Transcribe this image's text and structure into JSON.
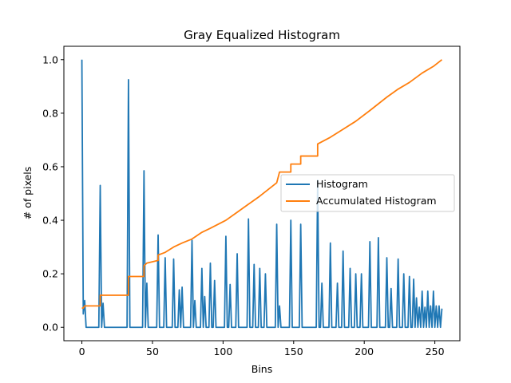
{
  "chart_data": {
    "type": "line",
    "title": "Gray Equalized Histogram",
    "xlabel": "Bins",
    "ylabel": "# of pixels",
    "xlim": [
      -12.75,
      267.75
    ],
    "ylim": [
      -0.05,
      1.05
    ],
    "x_ticks": [
      0,
      50,
      100,
      150,
      200,
      250
    ],
    "x_tick_labels": [
      "0",
      "50",
      "100",
      "150",
      "200",
      "250"
    ],
    "y_ticks": [
      0.0,
      0.2,
      0.4,
      0.6,
      0.8,
      1.0
    ],
    "y_tick_labels": [
      "0.0",
      "0.2",
      "0.4",
      "0.6",
      "0.8",
      "1.0"
    ],
    "grid": false,
    "legend_position": "center-right",
    "series": [
      {
        "name": "Histogram",
        "color": "#1f77b4",
        "peaks": [
          [
            0,
            1.0
          ],
          [
            1,
            0.05
          ],
          [
            2,
            0.1
          ],
          [
            3,
            0.0
          ],
          [
            13,
            0.53
          ],
          [
            15,
            0.09
          ],
          [
            33,
            0.925
          ],
          [
            44,
            0.585
          ],
          [
            46,
            0.165
          ],
          [
            54,
            0.345
          ],
          [
            59,
            0.26
          ],
          [
            65,
            0.255
          ],
          [
            69,
            0.14
          ],
          [
            71,
            0.15
          ],
          [
            78,
            0.325
          ],
          [
            80,
            0.1
          ],
          [
            85,
            0.22
          ],
          [
            87,
            0.115
          ],
          [
            91,
            0.24
          ],
          [
            94,
            0.175
          ],
          [
            102,
            0.34
          ],
          [
            105,
            0.16
          ],
          [
            110,
            0.275
          ],
          [
            118,
            0.405
          ],
          [
            122,
            0.235
          ],
          [
            126,
            0.22
          ],
          [
            130,
            0.2
          ],
          [
            138,
            0.385
          ],
          [
            140,
            0.08
          ],
          [
            148,
            0.4
          ],
          [
            155,
            0.385
          ],
          [
            167,
            0.55
          ],
          [
            170,
            0.165
          ],
          [
            176,
            0.315
          ],
          [
            181,
            0.165
          ],
          [
            185,
            0.285
          ],
          [
            190,
            0.22
          ],
          [
            194,
            0.2
          ],
          [
            198,
            0.2
          ],
          [
            204,
            0.32
          ],
          [
            210,
            0.335
          ],
          [
            216,
            0.26
          ],
          [
            219,
            0.145
          ],
          [
            224,
            0.255
          ],
          [
            228,
            0.2
          ],
          [
            232,
            0.19
          ],
          [
            235,
            0.18
          ],
          [
            237,
            0.11
          ],
          [
            239,
            0.075
          ],
          [
            241,
            0.135
          ],
          [
            243,
            0.075
          ],
          [
            245,
            0.135
          ],
          [
            247,
            0.08
          ],
          [
            249,
            0.135
          ],
          [
            251,
            0.08
          ],
          [
            253,
            0.08
          ],
          [
            255,
            0.07
          ]
        ]
      },
      {
        "name": "Accumulated Histogram",
        "color": "#ff7f0e",
        "values": [
          [
            0,
            0.072
          ],
          [
            1,
            0.072
          ],
          [
            2,
            0.08
          ],
          [
            13,
            0.08
          ],
          [
            13,
            0.12
          ],
          [
            33,
            0.12
          ],
          [
            33,
            0.19
          ],
          [
            44,
            0.19
          ],
          [
            44,
            0.23
          ],
          [
            46,
            0.24
          ],
          [
            54,
            0.25
          ],
          [
            54,
            0.27
          ],
          [
            59,
            0.28
          ],
          [
            65,
            0.3
          ],
          [
            71,
            0.315
          ],
          [
            78,
            0.33
          ],
          [
            85,
            0.355
          ],
          [
            91,
            0.37
          ],
          [
            102,
            0.4
          ],
          [
            110,
            0.43
          ],
          [
            118,
            0.46
          ],
          [
            126,
            0.49
          ],
          [
            138,
            0.54
          ],
          [
            140,
            0.58
          ],
          [
            148,
            0.58
          ],
          [
            148,
            0.61
          ],
          [
            155,
            0.61
          ],
          [
            155,
            0.64
          ],
          [
            167,
            0.64
          ],
          [
            167,
            0.685
          ],
          [
            176,
            0.71
          ],
          [
            185,
            0.74
          ],
          [
            194,
            0.77
          ],
          [
            204,
            0.81
          ],
          [
            210,
            0.835
          ],
          [
            216,
            0.86
          ],
          [
            224,
            0.89
          ],
          [
            232,
            0.915
          ],
          [
            241,
            0.95
          ],
          [
            249,
            0.975
          ],
          [
            255,
            1.0
          ]
        ]
      }
    ]
  }
}
